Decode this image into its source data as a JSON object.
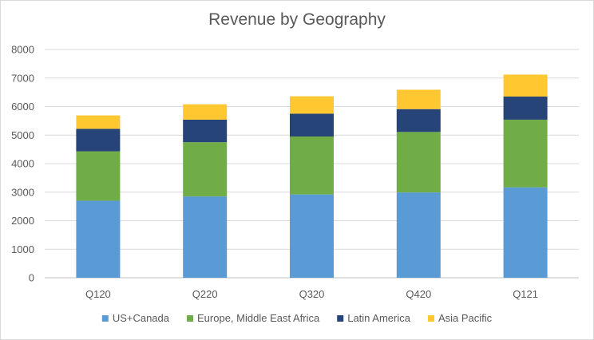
{
  "chart_data": {
    "type": "bar",
    "stacked": true,
    "title": "Revenue by Geography",
    "xlabel": "",
    "ylabel": "",
    "categories": [
      "Q120",
      "Q220",
      "Q320",
      "Q420",
      "Q121"
    ],
    "series": [
      {
        "name": "US+Canada",
        "color": "#5b9bd5",
        "values": [
          2700,
          2850,
          2920,
          2990,
          3170
        ]
      },
      {
        "name": "Europe, Middle East Africa",
        "color": "#70ad47",
        "values": [
          1730,
          1900,
          2030,
          2120,
          2370
        ]
      },
      {
        "name": "Latin America",
        "color": "#264478",
        "values": [
          790,
          790,
          800,
          800,
          810
        ]
      },
      {
        "name": "Asia Pacific",
        "color": "#ffc830",
        "values": [
          470,
          540,
          610,
          680,
          770
        ]
      }
    ],
    "ylim": [
      0,
      8000
    ],
    "yticks": [
      "0",
      "1000",
      "2000",
      "3000",
      "4000",
      "5000",
      "6000",
      "7000",
      "8000"
    ],
    "grid": true,
    "legend_position": "bottom"
  }
}
